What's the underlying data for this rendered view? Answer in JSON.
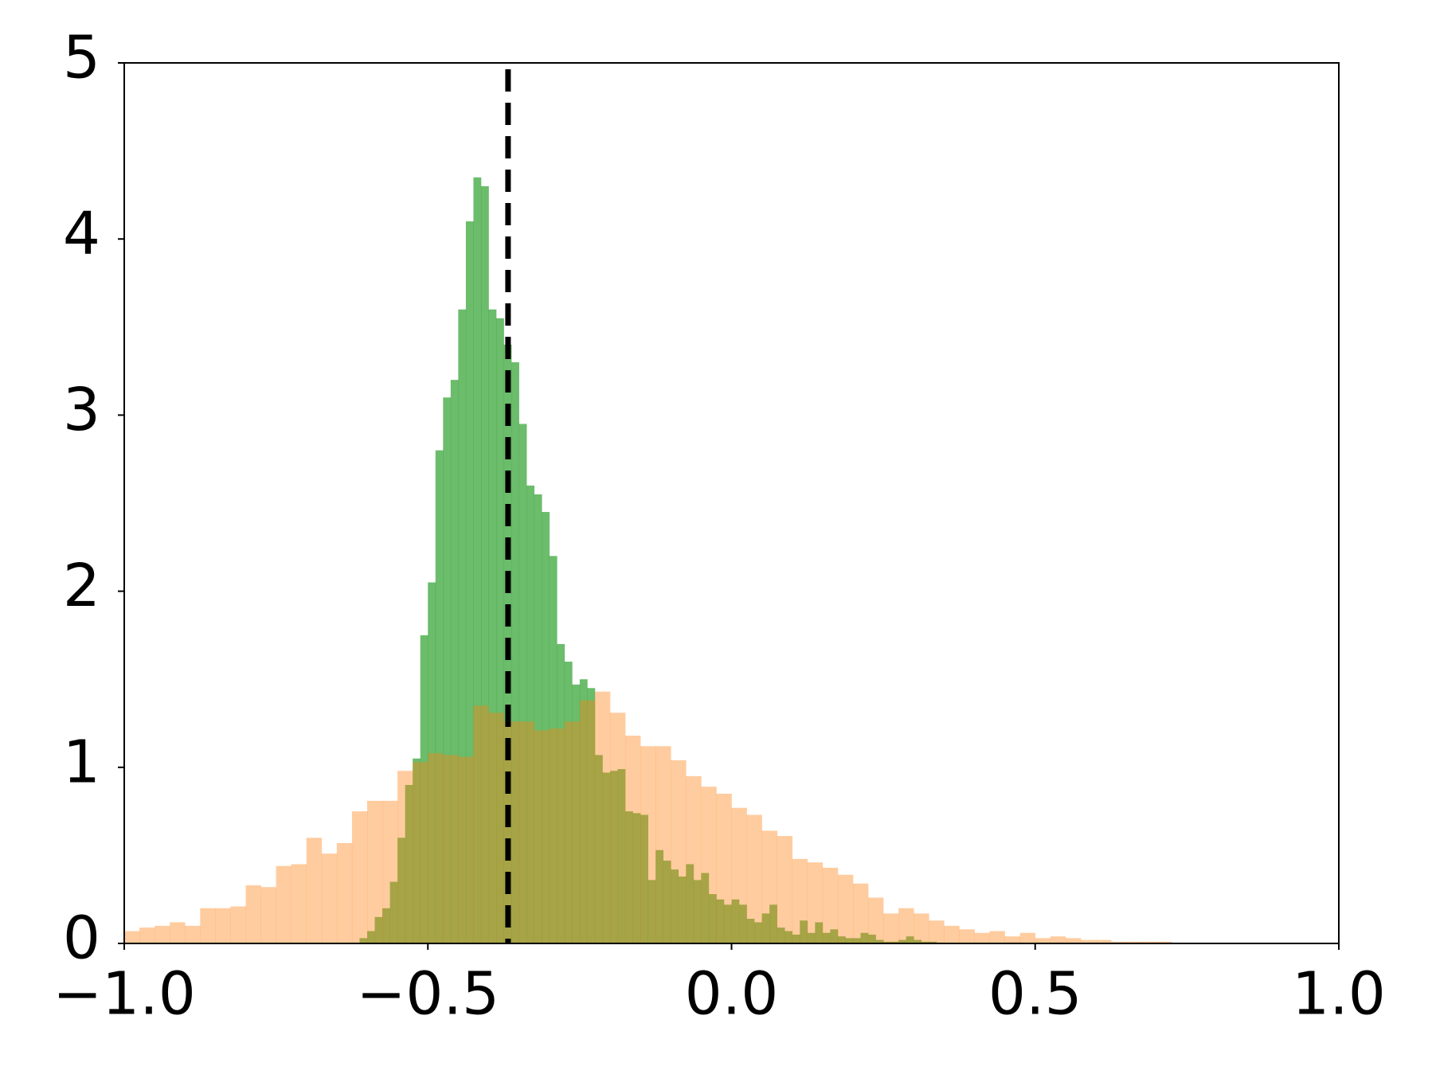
{
  "chart_data": {
    "type": "histogram",
    "series": [
      {
        "color": "#2ca02c",
        "alpha": 0.7,
        "bins": [
          -0.6125,
          -0.6,
          -0.5875,
          -0.575,
          -0.5625,
          -0.55,
          -0.5375,
          -0.525,
          -0.5125,
          -0.5,
          -0.4875,
          -0.475,
          -0.4625,
          -0.45,
          -0.4375,
          -0.425,
          -0.4125,
          -0.4,
          -0.3875,
          -0.375,
          -0.3625,
          -0.35,
          -0.3375,
          -0.325,
          -0.3125,
          -0.3,
          -0.2875,
          -0.275,
          -0.2625,
          -0.25,
          -0.2375,
          -0.225,
          -0.2125,
          -0.2,
          -0.1875,
          -0.175,
          -0.1625,
          -0.15,
          -0.1375,
          -0.125,
          -0.1125,
          -0.1,
          -0.0875,
          -0.075,
          -0.0625,
          -0.05,
          -0.0375,
          -0.025,
          -0.0125,
          0,
          0.0125,
          0.025,
          0.0375,
          0.05,
          0.0625,
          0.075,
          0.0875,
          0.1,
          0.1125,
          0.125,
          0.1375,
          0.15,
          0.1625,
          0.175,
          0.1875,
          0.2,
          0.2125,
          0.225,
          0.2375,
          0.25,
          0.2625,
          0.275,
          0.2875,
          0.3,
          0.3125,
          0.325,
          0.3375
        ],
        "values": [
          0.03,
          0.07,
          0.15,
          0.2,
          0.35,
          0.6,
          0.9,
          1.05,
          1.75,
          2.05,
          2.8,
          3.1,
          3.2,
          3.6,
          4.1,
          4.35,
          4.3,
          3.6,
          3.55,
          3.4,
          3.3,
          2.95,
          2.6,
          2.55,
          2.45,
          2.2,
          1.7,
          1.6,
          1.47,
          1.5,
          1.45,
          1.07,
          0.97,
          0.98,
          0.99,
          0.75,
          0.74,
          0.73,
          0.36,
          0.53,
          0.47,
          0.42,
          0.38,
          0.45,
          0.36,
          0.4,
          0.28,
          0.25,
          0.22,
          0.25,
          0.22,
          0.14,
          0.12,
          0.17,
          0.22,
          0.09,
          0.07,
          0.05,
          0.13,
          0.06,
          0.12,
          0.06,
          0.08,
          0.04,
          0.03,
          0.03,
          0.06,
          0.05,
          0.02,
          0.01,
          0.01,
          0.02,
          0.04,
          0.02,
          0.01,
          0.01
        ]
      },
      {
        "color": "#ff7f0e",
        "alpha": 0.4,
        "bins": [
          -1,
          -0.975,
          -0.95,
          -0.925,
          -0.9,
          -0.875,
          -0.85,
          -0.825,
          -0.8,
          -0.775,
          -0.75,
          -0.725,
          -0.7,
          -0.675,
          -0.65,
          -0.625,
          -0.6,
          -0.575,
          -0.55,
          -0.525,
          -0.5,
          -0.475,
          -0.45,
          -0.425,
          -0.4,
          -0.375,
          -0.35,
          -0.325,
          -0.3,
          -0.275,
          -0.25,
          -0.225,
          -0.2,
          -0.175,
          -0.15,
          -0.125,
          -0.1,
          -0.075,
          -0.05,
          -0.025,
          0,
          0.025,
          0.05,
          0.075,
          0.1,
          0.125,
          0.15,
          0.175,
          0.2,
          0.225,
          0.25,
          0.275,
          0.3,
          0.325,
          0.35,
          0.375,
          0.4,
          0.425,
          0.45,
          0.475,
          0.5,
          0.525,
          0.55,
          0.575,
          0.6,
          0.625,
          0.65,
          0.675,
          0.7,
          0.725
        ],
        "values": [
          0.07,
          0.09,
          0.1,
          0.12,
          0.1,
          0.2,
          0.2,
          0.21,
          0.33,
          0.32,
          0.44,
          0.45,
          0.6,
          0.51,
          0.57,
          0.75,
          0.81,
          0.81,
          0.98,
          1.03,
          1.08,
          1.07,
          1.06,
          1.35,
          1.31,
          1.26,
          1.26,
          1.21,
          1.22,
          1.26,
          1.38,
          1.43,
          1.31,
          1.18,
          1.12,
          1.12,
          1.04,
          0.95,
          0.89,
          0.85,
          0.77,
          0.73,
          0.64,
          0.61,
          0.48,
          0.46,
          0.43,
          0.39,
          0.34,
          0.26,
          0.17,
          0.2,
          0.17,
          0.13,
          0.1,
          0.08,
          0.06,
          0.07,
          0.04,
          0.06,
          0.03,
          0.04,
          0.03,
          0.02,
          0.02,
          0.01,
          0.01,
          0.01,
          0.01
        ]
      }
    ],
    "vline": {
      "x": -0.368,
      "color": "#000000"
    },
    "xlim": [
      -1,
      1
    ],
    "xticks": [
      {
        "value": -1,
        "label": "−1.0"
      },
      {
        "value": -0.5,
        "label": "−0.5"
      },
      {
        "value": 0,
        "label": "0.0"
      },
      {
        "value": 0.5,
        "label": "0.5"
      },
      {
        "value": 1,
        "label": "1.0"
      }
    ],
    "ylim": [
      0,
      5
    ],
    "yticks": [
      0,
      1,
      2,
      3,
      4,
      5
    ]
  }
}
